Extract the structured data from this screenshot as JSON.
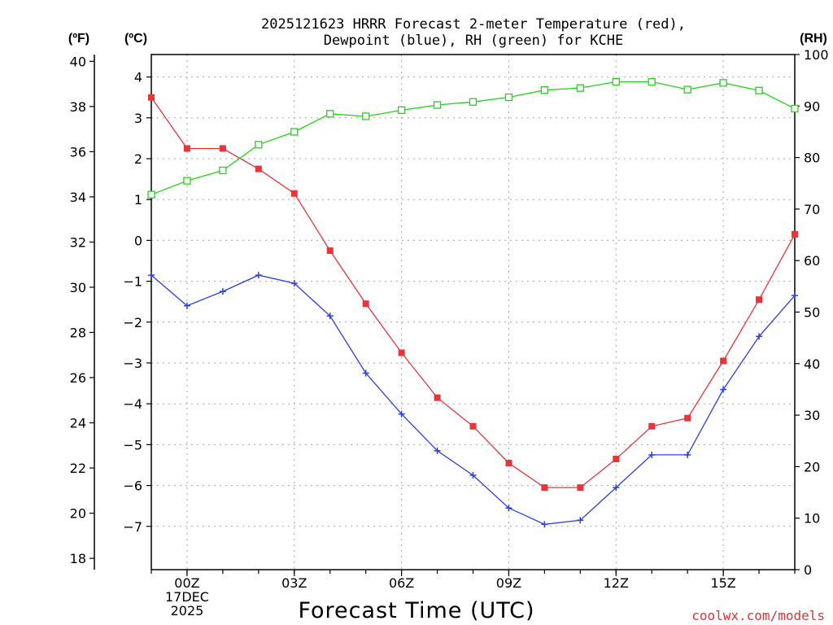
{
  "chart_data": {
    "type": "line",
    "title_lines": [
      "2025121623 HRRR Forecast 2-meter Temperature (red),",
      "Dewpoint (blue), RH (green) for KCHE"
    ],
    "xlabel": "Forecast Time (UTC)",
    "credit": "coolwx.com/models",
    "x_hours": [
      -1,
      0,
      1,
      2,
      3,
      4,
      5,
      6,
      7,
      8,
      9,
      10,
      11,
      12,
      13,
      14,
      15,
      16,
      17
    ],
    "xlim": [
      -1,
      17
    ],
    "x_ticks": [
      {
        "hour": 0,
        "lines": [
          "00Z",
          "17DEC",
          "2025"
        ]
      },
      {
        "hour": 3,
        "lines": [
          "03Z"
        ]
      },
      {
        "hour": 6,
        "lines": [
          "06Z"
        ]
      },
      {
        "hour": 9,
        "lines": [
          "09Z"
        ]
      },
      {
        "hour": 12,
        "lines": [
          "12Z"
        ]
      },
      {
        "hour": 15,
        "lines": [
          "15Z"
        ]
      }
    ],
    "axes": {
      "fahrenheit": {
        "unit_label": "(ºF)",
        "ylim": [
          17.5,
          40.3
        ],
        "ticks": [
          18,
          20,
          22,
          24,
          26,
          28,
          30,
          32,
          34,
          36,
          38,
          40
        ]
      },
      "celsius": {
        "unit_label": "(ºC)",
        "ylim": [
          -8.06,
          4.55
        ],
        "ticks": [
          -7,
          -6,
          -5,
          -4,
          -3,
          -2,
          -1,
          0,
          1,
          2,
          3,
          4
        ]
      },
      "rh": {
        "unit_label": "(RH)",
        "ylim": [
          0,
          100
        ],
        "ticks": [
          0,
          10,
          20,
          30,
          40,
          50,
          60,
          70,
          80,
          90,
          100
        ]
      }
    },
    "series": [
      {
        "name": "Temperature",
        "axis": "celsius",
        "color": "#e8353a",
        "marker": "filled-square",
        "values": [
          3.5,
          2.25,
          2.25,
          1.75,
          1.15,
          -0.25,
          -1.55,
          -2.75,
          -3.85,
          -4.55,
          -5.45,
          -6.05,
          -6.05,
          -5.35,
          -4.55,
          -4.35,
          -2.95,
          -1.45,
          0.15
        ]
      },
      {
        "name": "Dewpoint",
        "axis": "celsius",
        "color": "#2a3df0",
        "marker": "plus",
        "values": [
          -0.85,
          -1.6,
          -1.25,
          -0.85,
          -1.05,
          -1.85,
          -3.25,
          -4.25,
          -5.15,
          -5.75,
          -6.55,
          -6.95,
          -6.85,
          -6.05,
          -5.25,
          -5.25,
          -3.65,
          -2.35,
          -1.35
        ]
      },
      {
        "name": "RH",
        "axis": "rh",
        "color": "#22d61a",
        "marker": "open-square",
        "values": [
          72.8,
          75.5,
          77.5,
          82.5,
          85,
          88.5,
          88,
          89.2,
          90.2,
          90.8,
          91.7,
          93.1,
          93.5,
          94.7,
          94.7,
          93.2,
          94.5,
          93,
          89.5
        ]
      }
    ]
  }
}
